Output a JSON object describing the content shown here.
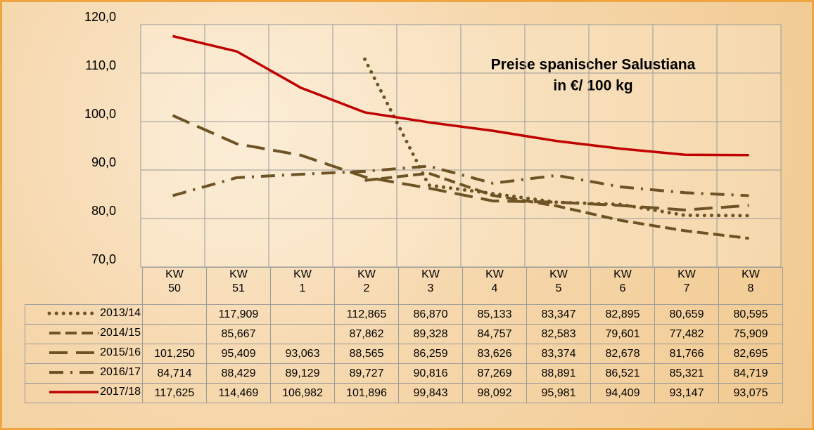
{
  "chart_data": {
    "type": "line",
    "title": "Preise spanischer Salustiana",
    "subtitle": "in €/ 100 kg",
    "categories": [
      "KW 50",
      "KW 51",
      "KW 1",
      "KW 2",
      "KW 3",
      "KW 4",
      "KW 5",
      "KW 6",
      "KW 7",
      "KW 8"
    ],
    "ylim": [
      70,
      120
    ],
    "yticks": [
      {
        "value": 70,
        "label": "70,0"
      },
      {
        "value": 80,
        "label": "80,0"
      },
      {
        "value": 90,
        "label": "90,0"
      },
      {
        "value": 100,
        "label": "100,0"
      },
      {
        "value": 110,
        "label": "110,0"
      },
      {
        "value": 120,
        "label": "120,0"
      }
    ],
    "grid": true,
    "series": [
      {
        "name": "2013/14",
        "color": "#6e5325",
        "dash": "dot",
        "values": [
          null,
          117.909,
          null,
          112.865,
          86.87,
          85.133,
          83.347,
          82.895,
          80.659,
          80.595
        ],
        "value_labels": [
          null,
          "117,909",
          null,
          "112,865",
          "86,870",
          "85,133",
          "83,347",
          "82,895",
          "80,659",
          "80,595"
        ]
      },
      {
        "name": "2014/15",
        "color": "#6e5325",
        "dash": "dash",
        "values": [
          null,
          85.667,
          null,
          87.862,
          89.328,
          84.757,
          82.583,
          79.601,
          77.482,
          75.909
        ],
        "value_labels": [
          null,
          "85,667",
          null,
          "87,862",
          "89,328",
          "84,757",
          "82,583",
          "79,601",
          "77,482",
          "75,909"
        ]
      },
      {
        "name": "2015/16",
        "color": "#6e5325",
        "dash": "long-dash",
        "values": [
          101.25,
          95.409,
          93.063,
          88.565,
          86.259,
          83.626,
          83.374,
          82.678,
          81.766,
          82.695
        ],
        "value_labels": [
          "101,250",
          "95,409",
          "93,063",
          "88,565",
          "86,259",
          "83,626",
          "83,374",
          "82,678",
          "81,766",
          "82,695"
        ]
      },
      {
        "name": "2016/17",
        "color": "#6e5325",
        "dash": "dash-dot",
        "values": [
          84.714,
          88.429,
          89.129,
          89.727,
          90.816,
          87.269,
          88.891,
          86.521,
          85.321,
          84.719
        ],
        "value_labels": [
          "84,714",
          "88,429",
          "89,129",
          "89,727",
          "90,816",
          "87,269",
          "88,891",
          "86,521",
          "85,321",
          "84,719"
        ]
      },
      {
        "name": "2017/18",
        "color": "#c00000",
        "dash": "solid",
        "values": [
          117.625,
          114.469,
          106.982,
          101.896,
          99.843,
          98.092,
          95.981,
          94.409,
          93.147,
          93.075
        ],
        "value_labels": [
          "117,625",
          "114,469",
          "106,982",
          "101,896",
          "99,843",
          "98,092",
          "95,981",
          "94,409",
          "93,147",
          "93,075"
        ]
      }
    ]
  }
}
